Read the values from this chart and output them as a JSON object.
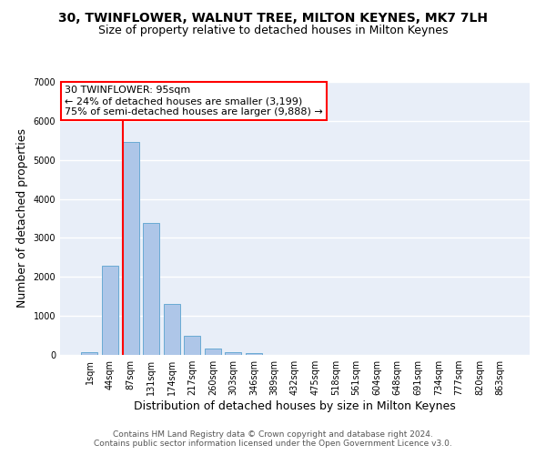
{
  "title": "30, TWINFLOWER, WALNUT TREE, MILTON KEYNES, MK7 7LH",
  "subtitle": "Size of property relative to detached houses in Milton Keynes",
  "xlabel": "Distribution of detached houses by size in Milton Keynes",
  "ylabel": "Number of detached properties",
  "footer_line1": "Contains HM Land Registry data © Crown copyright and database right 2024.",
  "footer_line2": "Contains public sector information licensed under the Open Government Licence v3.0.",
  "bin_labels": [
    "1sqm",
    "44sqm",
    "87sqm",
    "131sqm",
    "174sqm",
    "217sqm",
    "260sqm",
    "303sqm",
    "346sqm",
    "389sqm",
    "432sqm",
    "475sqm",
    "518sqm",
    "561sqm",
    "604sqm",
    "648sqm",
    "691sqm",
    "734sqm",
    "777sqm",
    "820sqm",
    "863sqm"
  ],
  "bar_values": [
    70,
    2280,
    5470,
    3380,
    1300,
    500,
    175,
    80,
    55,
    0,
    0,
    0,
    0,
    0,
    0,
    0,
    0,
    0,
    0,
    0,
    0
  ],
  "bar_color": "#aec6e8",
  "bar_edgecolor": "#6aaad4",
  "annotation_line1": "30 TWINFLOWER: 95sqm",
  "annotation_line2": "← 24% of detached houses are smaller (3,199)",
  "annotation_line3": "75% of semi-detached houses are larger (9,888) →",
  "annotation_box_facecolor": "white",
  "annotation_box_edgecolor": "red",
  "vline_color": "red",
  "vline_x_index": 2,
  "bar_width": 0.8,
  "ylim": [
    0,
    7000
  ],
  "background_color": "#e8eef8",
  "grid_color": "white",
  "title_fontsize": 10,
  "subtitle_fontsize": 9,
  "ylabel_fontsize": 9,
  "xlabel_fontsize": 9,
  "tick_fontsize": 7,
  "footer_fontsize": 6.5,
  "annotation_fontsize": 8
}
